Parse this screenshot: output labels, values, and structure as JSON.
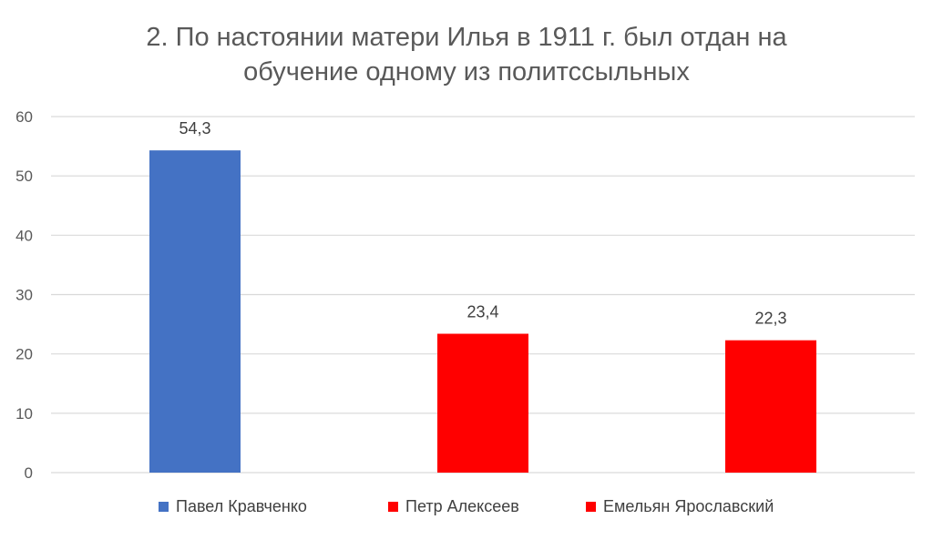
{
  "chart_data": {
    "type": "bar",
    "title_lines": [
      "2. По настоянии матери Илья в 1911 г. был отдан на",
      "обучение одному из политссыльных"
    ],
    "xlabel": "",
    "ylabel": "",
    "ylim": [
      0,
      60
    ],
    "yticks": [
      0,
      10,
      20,
      30,
      40,
      50,
      60
    ],
    "grid": true,
    "legend_position": "bottom",
    "categories": [
      "Павел Кравченко",
      "Петр Алексеев",
      "Емельян Ярославский"
    ],
    "values": [
      54.3,
      23.4,
      22.3
    ],
    "data_labels": [
      "54,3",
      "23,4",
      "22,3"
    ],
    "colors": [
      "#4472C4",
      "#FF0000",
      "#FF0000"
    ]
  }
}
